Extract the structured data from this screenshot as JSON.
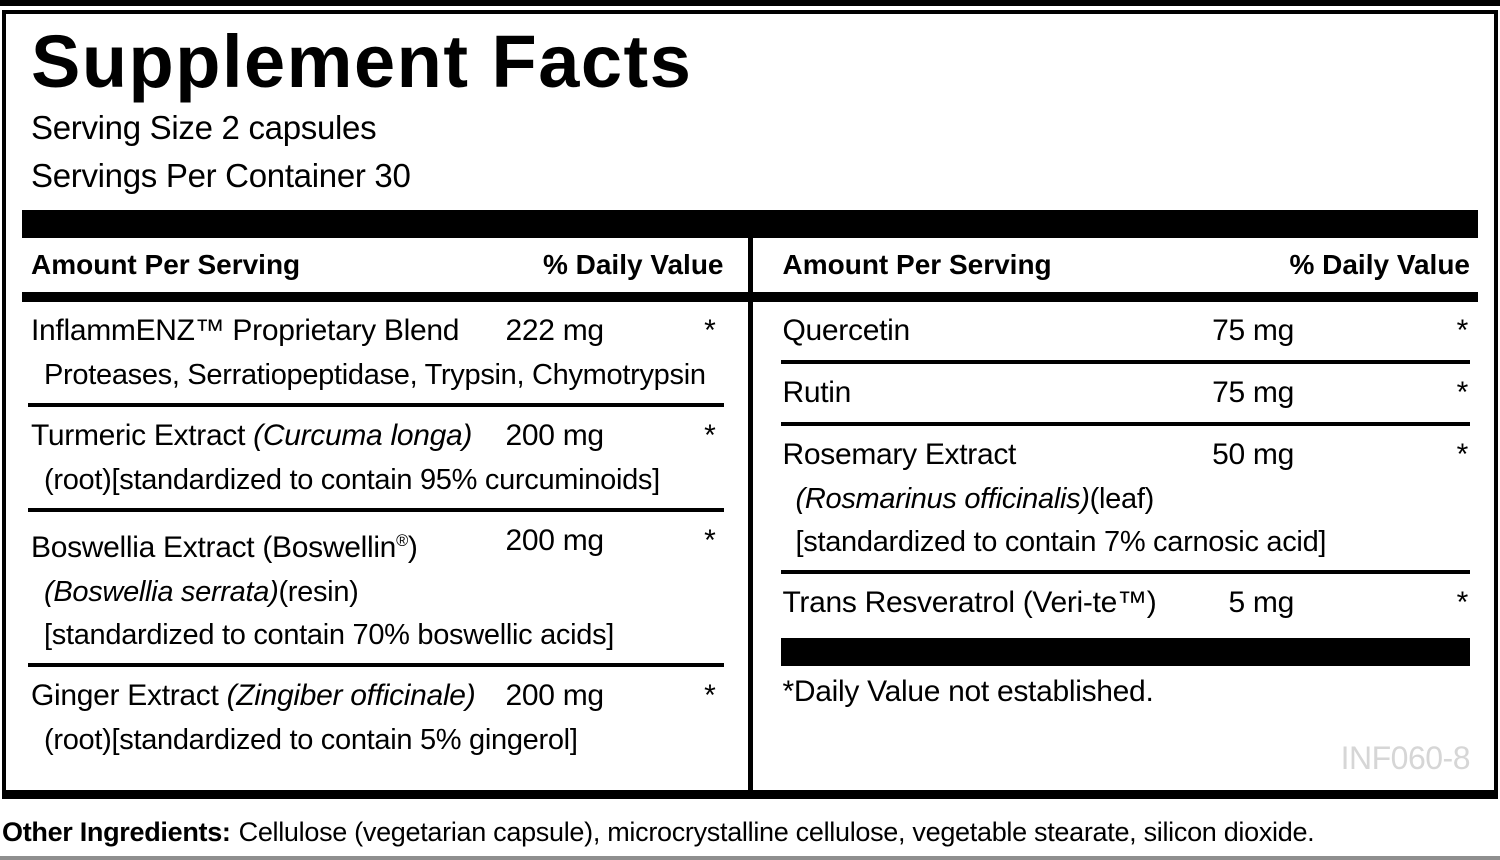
{
  "label": {
    "title": "Supplement Facts",
    "serving_size": "Serving Size 2 capsules",
    "servings_per_container": "Servings Per Container 30",
    "columns": [
      {
        "header_amount": "Amount Per Serving",
        "header_dv": "% Daily Value",
        "rows": [
          {
            "name": [
              {
                "t": "InflammENZ™ Proprietary Blend"
              }
            ],
            "amount": "222 mg",
            "dv": "*",
            "subs": [
              [
                {
                  "t": "Proteases, Serratiopeptidase, Trypsin, Chymotrypsin"
                }
              ]
            ]
          },
          {
            "name": [
              {
                "t": "Turmeric Extract "
              },
              {
                "t": "(Curcuma longa)",
                "s": "it"
              }
            ],
            "amount": "200 mg",
            "dv": "*",
            "subs": [
              [
                {
                  "t": "(root)[standardized to contain 95% curcuminoids]"
                }
              ]
            ]
          },
          {
            "name": [
              {
                "t": "Boswellia Extract (Boswellin"
              },
              {
                "t": "®",
                "s": "sup"
              },
              {
                "t": ")"
              }
            ],
            "amount": "200 mg",
            "dv": "*",
            "subs": [
              [
                {
                  "t": "(Boswellia serrata)",
                  "s": "it"
                },
                {
                  "t": "(resin)"
                }
              ],
              [
                {
                  "t": "[standardized to contain 70% boswellic acids]"
                }
              ]
            ]
          },
          {
            "name": [
              {
                "t": "Ginger Extract "
              },
              {
                "t": "(Zingiber officinale)",
                "s": "it"
              }
            ],
            "amount": "200 mg",
            "dv": "*",
            "subs": [
              [
                {
                  "t": "(root)[standardized to contain 5% gingerol]"
                }
              ]
            ]
          }
        ]
      },
      {
        "header_amount": "Amount Per Serving",
        "header_dv": "% Daily Value",
        "rows": [
          {
            "name": [
              {
                "t": "Quercetin"
              }
            ],
            "amount": "75 mg",
            "dv": "*",
            "subs": []
          },
          {
            "name": [
              {
                "t": "Rutin"
              }
            ],
            "amount": "75 mg",
            "dv": "*",
            "subs": []
          },
          {
            "name": [
              {
                "t": "Rosemary Extract"
              }
            ],
            "amount": "50 mg",
            "dv": "*",
            "subs": [
              [
                {
                  "t": "(Rosmarinus officinalis)",
                  "s": "it"
                },
                {
                  "t": "(leaf)"
                }
              ],
              [
                {
                  "t": "[standardized to contain 7% carnosic acid]"
                }
              ]
            ]
          },
          {
            "name": [
              {
                "t": "Trans Resveratrol (Veri-te™)"
              }
            ],
            "amount": "5 mg",
            "dv": "*",
            "subs": []
          }
        ]
      }
    ],
    "footnote": "*Daily Value not established.",
    "code": "INF060-8",
    "other_ingredients_label": "Other Ingredients:",
    "other_ingredients_text": "Cellulose (vegetarian capsule), microcrystalline cellulose, vegetable stearate, silicon dioxide."
  },
  "colors": {
    "ink": "#000000",
    "background": "#ffffff",
    "code_gray": "#d6d6d6",
    "bottom_strip_gray": "#8f8f8f"
  }
}
